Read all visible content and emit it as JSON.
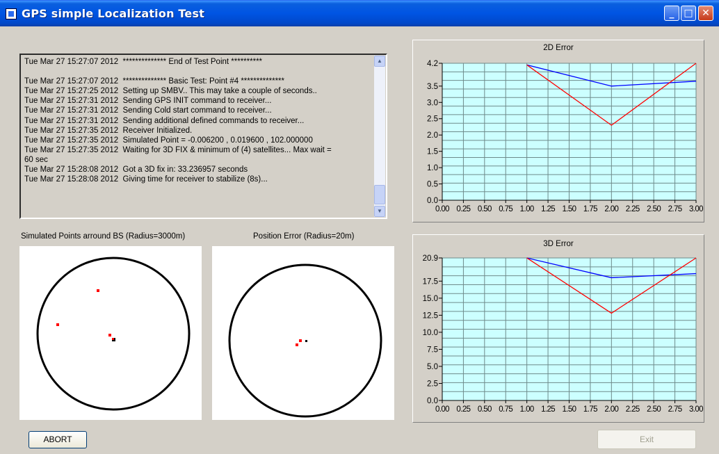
{
  "window": {
    "title": "GPS simple Localization Test",
    "min_label": "_",
    "max_label": "□",
    "close_label": "✕"
  },
  "log": {
    "lines": [
      "Tue Mar 27 15:27:07 2012  ************** End of Test Point **********",
      "",
      "Tue Mar 27 15:27:07 2012  ************** Basic Test: Point #4 **************",
      "Tue Mar 27 15:27:25 2012  Setting up SMBV.. This may take a couple of seconds..",
      "Tue Mar 27 15:27:31 2012  Sending GPS INIT command to receiver...",
      "Tue Mar 27 15:27:31 2012  Sending Cold start command to receiver...",
      "Tue Mar 27 15:27:31 2012  Sending additional defined commands to receiver...",
      "Tue Mar 27 15:27:35 2012  Receiver Initialized.",
      "Tue Mar 27 15:27:35 2012  Simulated Point = -0.006200 , 0.019600 , 102.000000",
      "Tue Mar 27 15:27:35 2012  Waiting for 3D FIX & minimum of (4) satellites... Max wait =",
      "60 sec",
      "Tue Mar 27 15:28:08 2012  Got a 3D fix in: 33.236957 seconds",
      "Tue Mar 27 15:28:08 2012  Giving time for receiver to stabilize (8s)..."
    ]
  },
  "labels": {
    "sim_points": "Simulated Points arround BS (Radius=3000m)",
    "pos_error": "Position Error (Radius=20m)"
  },
  "buttons": {
    "abort": "ABORT",
    "exit": "Exit"
  },
  "colors": {
    "plot_bg": "#ccffff",
    "grid": "#6e8a8a",
    "series_blue": "#0000ff",
    "series_red": "#ff0000",
    "point_red": "#ff0000",
    "point_black": "#000000"
  },
  "chart_data": [
    {
      "type": "line",
      "title": "2D Error",
      "xlim": [
        0,
        3
      ],
      "ylim": [
        0,
        4.2
      ],
      "x_ticks": [
        "0.00",
        "0.25",
        "0.50",
        "0.75",
        "1.00",
        "1.25",
        "1.50",
        "1.75",
        "2.00",
        "2.25",
        "2.50",
        "2.75",
        "3.00"
      ],
      "y_ticks": [
        "0.0",
        "0.5",
        "1.0",
        "1.5",
        "2.0",
        "2.5",
        "3.0",
        "3.5",
        "4.2"
      ],
      "y_tick_values": [
        0,
        0.5,
        1.0,
        1.5,
        2.0,
        2.5,
        3.0,
        3.5,
        4.2
      ],
      "grid": true,
      "series": [
        {
          "color": "#0000ff",
          "x": [
            1,
            2,
            3
          ],
          "y": [
            4.15,
            3.5,
            3.65
          ]
        },
        {
          "color": "#ff0000",
          "x": [
            1,
            2,
            3
          ],
          "y": [
            4.15,
            2.3,
            4.2
          ]
        }
      ]
    },
    {
      "type": "line",
      "title": "3D Error",
      "xlim": [
        0,
        3
      ],
      "ylim": [
        0,
        20.9
      ],
      "x_ticks": [
        "0.00",
        "0.25",
        "0.50",
        "0.75",
        "1.00",
        "1.25",
        "1.50",
        "1.75",
        "2.00",
        "2.25",
        "2.50",
        "2.75",
        "3.00"
      ],
      "y_ticks": [
        "0.0",
        "2.5",
        "5.0",
        "7.5",
        "10.0",
        "12.5",
        "15.0",
        "17.5",
        "20.9"
      ],
      "y_tick_values": [
        0,
        2.5,
        5.0,
        7.5,
        10.0,
        12.5,
        15.0,
        17.5,
        20.9
      ],
      "grid": true,
      "series": [
        {
          "color": "#0000ff",
          "x": [
            1,
            2,
            3
          ],
          "y": [
            20.9,
            18.0,
            18.6
          ]
        },
        {
          "color": "#ff0000",
          "x": [
            1,
            2,
            3
          ],
          "y": [
            20.9,
            12.8,
            20.9
          ]
        }
      ]
    }
  ]
}
